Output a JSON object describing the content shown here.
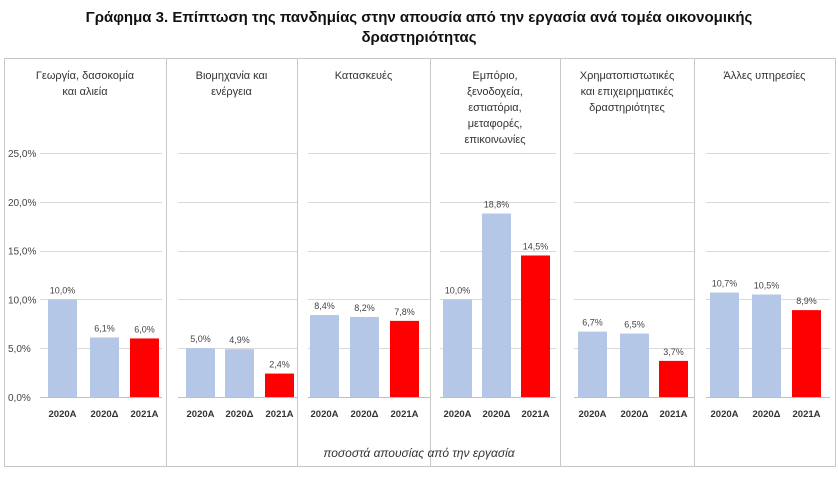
{
  "title": {
    "line1": "Γράφημα 3. Επίπτωση της πανδημίας στην απουσία από την εργασία ανά τομέα οικονομικής",
    "line2": "δραστηριότητας"
  },
  "colors": {
    "light": "#b4c7e7",
    "accent": "#ff0000",
    "grid": "#d9d9d9",
    "frame": "#c8c8c8"
  },
  "chart_data": {
    "type": "bar",
    "xlabel": "ποσοστά απουσίας από την εργασία",
    "ylim": [
      0,
      25
    ],
    "yticks": [
      "0,0%",
      "5,0%",
      "10,0%",
      "15,0%",
      "20,0%",
      "25,0%"
    ],
    "categories": [
      "2020Α",
      "2020Δ",
      "2021Α"
    ],
    "panels": [
      {
        "label": [
          "Γεωργία, δασοκομία",
          "και αλιεία"
        ],
        "values": [
          10.0,
          6.1,
          6.0
        ],
        "value_labels": [
          "10,0%",
          "6,1%",
          "6,0%"
        ]
      },
      {
        "label": [
          "Βιομηχανία και",
          "ενέργεια"
        ],
        "values": [
          5.0,
          4.9,
          2.4
        ],
        "value_labels": [
          "5,0%",
          "4,9%",
          "2,4%"
        ]
      },
      {
        "label": [
          "Κατασκευές"
        ],
        "values": [
          8.4,
          8.2,
          7.8
        ],
        "value_labels": [
          "8,4%",
          "8,2%",
          "7,8%"
        ]
      },
      {
        "label": [
          "Εμπόριο,",
          "ξενοδοχεία,",
          "εστιατόρια,",
          "μεταφορές,",
          "επικοινωνίες"
        ],
        "values": [
          10.0,
          18.8,
          14.5
        ],
        "value_labels": [
          "10,0%",
          "18,8%",
          "14,5%"
        ]
      },
      {
        "label": [
          "Χρηματοπιστωτικές",
          "και επιχειρηματικές",
          "δραστηριότητες"
        ],
        "values": [
          6.7,
          6.5,
          3.7
        ],
        "value_labels": [
          "6,7%",
          "6,5%",
          "3,7%"
        ]
      },
      {
        "label": [
          "Άλλες υπηρεσίες"
        ],
        "values": [
          10.7,
          10.5,
          8.9
        ],
        "value_labels": [
          "10,7%",
          "10,5%",
          "8,9%"
        ]
      }
    ]
  }
}
